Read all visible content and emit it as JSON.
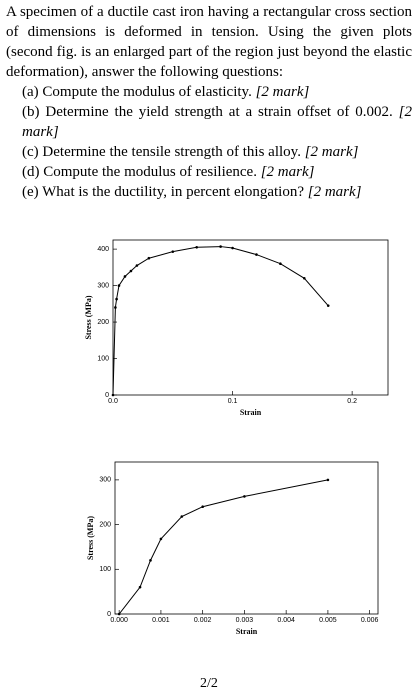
{
  "paragraph": "A specimen of a ductile cast iron having a rectangular cross section of dimensions is deformed in tension. Using the given plots (second fig. is an enlarged part of the region just beyond the elastic deformation), answer the following questions:",
  "questions": [
    {
      "label": "(a)",
      "text": "Compute the modulus of elasticity.",
      "mark": "[2 mark]"
    },
    {
      "label": "(b)",
      "text": "Determine the yield strength at a strain offset of 0.002.",
      "mark": "[2 mark]"
    },
    {
      "label": "(c)",
      "text": "Determine the tensile strength of this alloy.",
      "mark": "[2 mark]"
    },
    {
      "label": "(d)",
      "text": "Compute the modulus of resilience.",
      "mark": "[2 mark]"
    },
    {
      "label": "(e)",
      "text": "What is the ductility, in percent elongation?",
      "mark": "[2 mark]"
    }
  ],
  "chart_data": [
    {
      "type": "line",
      "x_label": "Strain",
      "y_label": "Stress (MPa)",
      "color": "#000000",
      "x": [
        0,
        0.002,
        0.003,
        0.005,
        0.01,
        0.015,
        0.02,
        0.03,
        0.05,
        0.07,
        0.09,
        0.1,
        0.12,
        0.14,
        0.16,
        0.18
      ],
      "values": [
        0,
        240,
        263,
        300,
        325,
        340,
        355,
        375,
        393,
        405,
        407,
        403,
        385,
        360,
        320,
        245
      ],
      "xlim": [
        0,
        0.23
      ],
      "xticks": [
        {
          "value": 0,
          "label": "0.0"
        },
        {
          "value": 0.1,
          "label": "0.1"
        },
        {
          "value": 0.2,
          "label": "0.2"
        }
      ],
      "ylim": [
        0,
        425
      ],
      "yticks": [
        0,
        100,
        200,
        300,
        400
      ]
    },
    {
      "type": "line",
      "x_label": "Strain",
      "y_label": "Stress (MPa)",
      "color": "#000000",
      "x": [
        0,
        0.0005,
        0.00075,
        0.001,
        0.0015,
        0.002,
        0.003,
        0.005
      ],
      "values": [
        0,
        60,
        120,
        168,
        218,
        240,
        263,
        300
      ],
      "xlim": [
        -0.0001,
        0.0062
      ],
      "xticks": [
        {
          "value": 0,
          "label": "0.000"
        },
        {
          "value": 0.001,
          "label": "0.001"
        },
        {
          "value": 0.002,
          "label": "0.002"
        },
        {
          "value": 0.003,
          "label": "0.003"
        },
        {
          "value": 0.004,
          "label": "0.004"
        },
        {
          "value": 0.005,
          "label": "0.005"
        },
        {
          "value": 0.006,
          "label": "0.006"
        }
      ],
      "ylim": [
        0,
        340
      ],
      "yticks": [
        0,
        100,
        200,
        300
      ]
    }
  ],
  "page_number": "2/2"
}
